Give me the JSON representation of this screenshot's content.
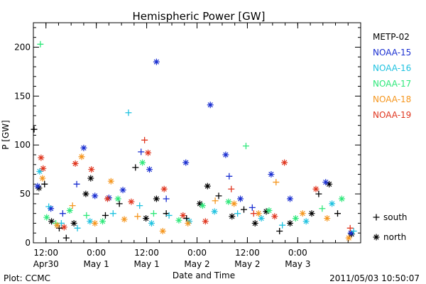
{
  "chart_data": {
    "type": "scatter",
    "title": "Hemispheric Power [GW]",
    "ylabel": "P [GW]",
    "xlabel": "Date and Time",
    "ylim": [
      0,
      225
    ],
    "xlim": [
      "2011-04-30T09:00",
      "2011-05-03T15:00"
    ],
    "y_ticks": [
      0,
      50,
      100,
      150,
      200
    ],
    "x_ticks": [
      {
        "x": "2011-04-30T12:00",
        "top": "12:00",
        "bottom": "Apr30"
      },
      {
        "x": "2011-05-01T00:00",
        "top": "0:00",
        "bottom": "May 1"
      },
      {
        "x": "2011-05-01T12:00",
        "top": "12:00",
        "bottom": "May 1"
      },
      {
        "x": "2011-05-02T00:00",
        "top": "0:00",
        "bottom": "May 2"
      },
      {
        "x": "2011-05-02T12:00",
        "top": "12:00",
        "bottom": "May 2"
      },
      {
        "x": "2011-05-03T00:00",
        "top": "0:00",
        "bottom": "May 3"
      }
    ],
    "series": [
      {
        "name": "METP-02",
        "color": "#000000",
        "points": [
          {
            "x": "2011-04-30T09:10",
            "y": 116,
            "m": "south"
          },
          {
            "x": "2011-04-30T10:20",
            "y": 56,
            "m": "north"
          },
          {
            "x": "2011-04-30T11:40",
            "y": 60,
            "m": "south"
          },
          {
            "x": "2011-04-30T13:20",
            "y": 22,
            "m": "north"
          },
          {
            "x": "2011-04-30T15:10",
            "y": 15,
            "m": "south"
          },
          {
            "x": "2011-04-30T16:50",
            "y": 5,
            "m": "south"
          },
          {
            "x": "2011-04-30T18:40",
            "y": 20,
            "m": "north"
          },
          {
            "x": "2011-04-30T21:30",
            "y": 50,
            "m": "north"
          },
          {
            "x": "2011-04-30T22:40",
            "y": 66,
            "m": "north"
          },
          {
            "x": "2011-05-01T02:10",
            "y": 28,
            "m": "south"
          },
          {
            "x": "2011-05-01T05:30",
            "y": 40,
            "m": "south"
          },
          {
            "x": "2011-05-01T09:20",
            "y": 77,
            "m": "south"
          },
          {
            "x": "2011-05-01T11:50",
            "y": 25,
            "m": "north"
          },
          {
            "x": "2011-05-01T14:20",
            "y": 45,
            "m": "north"
          },
          {
            "x": "2011-05-01T16:40",
            "y": 30,
            "m": "south"
          },
          {
            "x": "2011-05-01T21:30",
            "y": 25,
            "m": "south"
          },
          {
            "x": "2011-05-02T00:40",
            "y": 40,
            "m": "north"
          },
          {
            "x": "2011-05-02T02:30",
            "y": 58,
            "m": "north"
          },
          {
            "x": "2011-05-02T05:10",
            "y": 48,
            "m": "south"
          },
          {
            "x": "2011-05-02T08:20",
            "y": 27,
            "m": "north"
          },
          {
            "x": "2011-05-02T11:10",
            "y": 34,
            "m": "south"
          },
          {
            "x": "2011-05-02T13:50",
            "y": 20,
            "m": "north"
          },
          {
            "x": "2011-05-02T16:30",
            "y": 32,
            "m": "north"
          },
          {
            "x": "2011-05-02T19:40",
            "y": 12,
            "m": "south"
          },
          {
            "x": "2011-05-02T22:10",
            "y": 20,
            "m": "north"
          },
          {
            "x": "2011-05-03T03:20",
            "y": 30,
            "m": "north"
          },
          {
            "x": "2011-05-03T05:00",
            "y": 50,
            "m": "south"
          },
          {
            "x": "2011-05-03T07:30",
            "y": 60,
            "m": "north"
          },
          {
            "x": "2011-05-03T09:30",
            "y": 30,
            "m": "south"
          },
          {
            "x": "2011-05-03T12:50",
            "y": 9,
            "m": "north"
          }
        ]
      },
      {
        "name": "NOAA-15",
        "color": "#1a2fd1",
        "points": [
          {
            "x": "2011-04-30T10:00",
            "y": 58,
            "m": "north"
          },
          {
            "x": "2011-04-30T13:10",
            "y": 35,
            "m": "north"
          },
          {
            "x": "2011-04-30T16:00",
            "y": 30,
            "m": "south"
          },
          {
            "x": "2011-04-30T19:20",
            "y": 60,
            "m": "south"
          },
          {
            "x": "2011-04-30T21:00",
            "y": 97,
            "m": "north"
          },
          {
            "x": "2011-04-30T23:40",
            "y": 48,
            "m": "north"
          },
          {
            "x": "2011-05-01T03:00",
            "y": 46,
            "m": "north"
          },
          {
            "x": "2011-05-01T06:20",
            "y": 54,
            "m": "north"
          },
          {
            "x": "2011-05-01T10:40",
            "y": 93,
            "m": "south"
          },
          {
            "x": "2011-05-01T12:40",
            "y": 75,
            "m": "north"
          },
          {
            "x": "2011-05-01T14:20",
            "y": 185,
            "m": "north"
          },
          {
            "x": "2011-05-01T16:40",
            "y": 45,
            "m": "south"
          },
          {
            "x": "2011-05-01T21:20",
            "y": 82,
            "m": "north"
          },
          {
            "x": "2011-05-02T03:10",
            "y": 141,
            "m": "north"
          },
          {
            "x": "2011-05-02T06:50",
            "y": 90,
            "m": "north"
          },
          {
            "x": "2011-05-02T07:40",
            "y": 68,
            "m": "south"
          },
          {
            "x": "2011-05-02T10:20",
            "y": 45,
            "m": "north"
          },
          {
            "x": "2011-05-02T13:10",
            "y": 36,
            "m": "south"
          },
          {
            "x": "2011-05-02T17:40",
            "y": 70,
            "m": "north"
          },
          {
            "x": "2011-05-02T22:10",
            "y": 45,
            "m": "north"
          },
          {
            "x": "2011-05-03T06:40",
            "y": 62,
            "m": "north"
          },
          {
            "x": "2011-05-03T12:40",
            "y": 10,
            "m": "north"
          }
        ]
      },
      {
        "name": "NOAA-16",
        "color": "#1fc2e0",
        "points": [
          {
            "x": "2011-04-30T10:30",
            "y": 73,
            "m": "north"
          },
          {
            "x": "2011-04-30T12:40",
            "y": 37,
            "m": "south"
          },
          {
            "x": "2011-04-30T15:40",
            "y": 20,
            "m": "south"
          },
          {
            "x": "2011-04-30T19:30",
            "y": 15,
            "m": "south"
          },
          {
            "x": "2011-04-30T22:30",
            "y": 22,
            "m": "north"
          },
          {
            "x": "2011-05-01T04:00",
            "y": 30,
            "m": "south"
          },
          {
            "x": "2011-05-01T07:40",
            "y": 133,
            "m": "south"
          },
          {
            "x": "2011-05-01T10:20",
            "y": 38,
            "m": "south"
          },
          {
            "x": "2011-05-01T13:10",
            "y": 20,
            "m": "north"
          },
          {
            "x": "2011-05-01T17:20",
            "y": 28,
            "m": "south"
          },
          {
            "x": "2011-05-01T22:10",
            "y": 22,
            "m": "north"
          },
          {
            "x": "2011-05-02T04:10",
            "y": 32,
            "m": "north"
          },
          {
            "x": "2011-05-02T09:40",
            "y": 30,
            "m": "south"
          },
          {
            "x": "2011-05-02T15:20",
            "y": 25,
            "m": "north"
          },
          {
            "x": "2011-05-02T20:20",
            "y": 18,
            "m": "south"
          },
          {
            "x": "2011-05-03T02:00",
            "y": 22,
            "m": "north"
          },
          {
            "x": "2011-05-03T08:10",
            "y": 40,
            "m": "north"
          },
          {
            "x": "2011-05-03T13:20",
            "y": 12,
            "m": "south"
          }
        ]
      },
      {
        "name": "NOAA-17",
        "color": "#2ee87a",
        "points": [
          {
            "x": "2011-04-30T10:40",
            "y": 203,
            "m": "south"
          },
          {
            "x": "2011-04-30T12:10",
            "y": 26,
            "m": "north"
          },
          {
            "x": "2011-04-30T14:20",
            "y": 20,
            "m": "south"
          },
          {
            "x": "2011-04-30T17:40",
            "y": 33,
            "m": "north"
          },
          {
            "x": "2011-04-30T21:40",
            "y": 28,
            "m": "south"
          },
          {
            "x": "2011-05-01T01:30",
            "y": 22,
            "m": "north"
          },
          {
            "x": "2011-05-01T05:10",
            "y": 45,
            "m": "north"
          },
          {
            "x": "2011-05-01T11:00",
            "y": 82,
            "m": "north"
          },
          {
            "x": "2011-05-01T13:40",
            "y": 30,
            "m": "south"
          },
          {
            "x": "2011-05-01T19:40",
            "y": 23,
            "m": "north"
          },
          {
            "x": "2011-05-02T01:20",
            "y": 38,
            "m": "north"
          },
          {
            "x": "2011-05-02T07:30",
            "y": 42,
            "m": "north"
          },
          {
            "x": "2011-05-02T11:40",
            "y": 99,
            "m": "south"
          },
          {
            "x": "2011-05-02T17:10",
            "y": 33,
            "m": "north"
          },
          {
            "x": "2011-05-02T23:30",
            "y": 25,
            "m": "north"
          },
          {
            "x": "2011-05-03T05:50",
            "y": 35,
            "m": "south"
          },
          {
            "x": "2011-05-03T10:30",
            "y": 45,
            "m": "north"
          }
        ]
      },
      {
        "name": "NOAA-18",
        "color": "#f5961e",
        "points": [
          {
            "x": "2011-04-30T11:10",
            "y": 66,
            "m": "north"
          },
          {
            "x": "2011-04-30T14:40",
            "y": 18,
            "m": "north"
          },
          {
            "x": "2011-04-30T18:20",
            "y": 38,
            "m": "south"
          },
          {
            "x": "2011-04-30T20:30",
            "y": 88,
            "m": "north"
          },
          {
            "x": "2011-04-30T23:40",
            "y": 20,
            "m": "north"
          },
          {
            "x": "2011-05-01T03:30",
            "y": 63,
            "m": "north"
          },
          {
            "x": "2011-05-01T06:40",
            "y": 24,
            "m": "north"
          },
          {
            "x": "2011-05-01T09:50",
            "y": 27,
            "m": "south"
          },
          {
            "x": "2011-05-01T15:50",
            "y": 12,
            "m": "north"
          },
          {
            "x": "2011-05-01T21:50",
            "y": 20,
            "m": "north"
          },
          {
            "x": "2011-05-02T04:20",
            "y": 43,
            "m": "south"
          },
          {
            "x": "2011-05-02T08:50",
            "y": 40,
            "m": "north"
          },
          {
            "x": "2011-05-02T14:40",
            "y": 30,
            "m": "north"
          },
          {
            "x": "2011-05-02T18:50",
            "y": 62,
            "m": "south"
          },
          {
            "x": "2011-05-03T01:10",
            "y": 30,
            "m": "north"
          },
          {
            "x": "2011-05-03T07:00",
            "y": 25,
            "m": "north"
          },
          {
            "x": "2011-05-03T12:10",
            "y": 5,
            "m": "north"
          }
        ]
      },
      {
        "name": "NOAA-19",
        "color": "#e0361f",
        "points": [
          {
            "x": "2011-04-30T10:50",
            "y": 87,
            "m": "north"
          },
          {
            "x": "2011-04-30T11:20",
            "y": 76,
            "m": "north"
          },
          {
            "x": "2011-04-30T16:20",
            "y": 16,
            "m": "north"
          },
          {
            "x": "2011-04-30T19:00",
            "y": 81,
            "m": "north"
          },
          {
            "x": "2011-04-30T22:50",
            "y": 75,
            "m": "north"
          },
          {
            "x": "2011-05-01T02:40",
            "y": 45,
            "m": "north"
          },
          {
            "x": "2011-05-01T08:20",
            "y": 42,
            "m": "north"
          },
          {
            "x": "2011-05-01T11:30",
            "y": 105,
            "m": "south"
          },
          {
            "x": "2011-05-01T12:20",
            "y": 92,
            "m": "north"
          },
          {
            "x": "2011-05-01T16:10",
            "y": 55,
            "m": "north"
          },
          {
            "x": "2011-05-01T20:40",
            "y": 28,
            "m": "north"
          },
          {
            "x": "2011-05-02T02:00",
            "y": 22,
            "m": "north"
          },
          {
            "x": "2011-05-02T08:10",
            "y": 55,
            "m": "south"
          },
          {
            "x": "2011-05-02T13:30",
            "y": 30,
            "m": "south"
          },
          {
            "x": "2011-05-02T18:30",
            "y": 27,
            "m": "north"
          },
          {
            "x": "2011-05-02T20:50",
            "y": 82,
            "m": "north"
          },
          {
            "x": "2011-05-03T04:20",
            "y": 55,
            "m": "north"
          },
          {
            "x": "2011-05-03T12:30",
            "y": 15,
            "m": "south"
          }
        ]
      }
    ],
    "marker_legend": [
      {
        "marker": "south",
        "symbol": "+",
        "label": "south"
      },
      {
        "marker": "north",
        "symbol": "*",
        "label": "north"
      }
    ]
  },
  "footer": {
    "left": "Plot: CCMC",
    "right": "2011/05/03 10:50:07"
  }
}
